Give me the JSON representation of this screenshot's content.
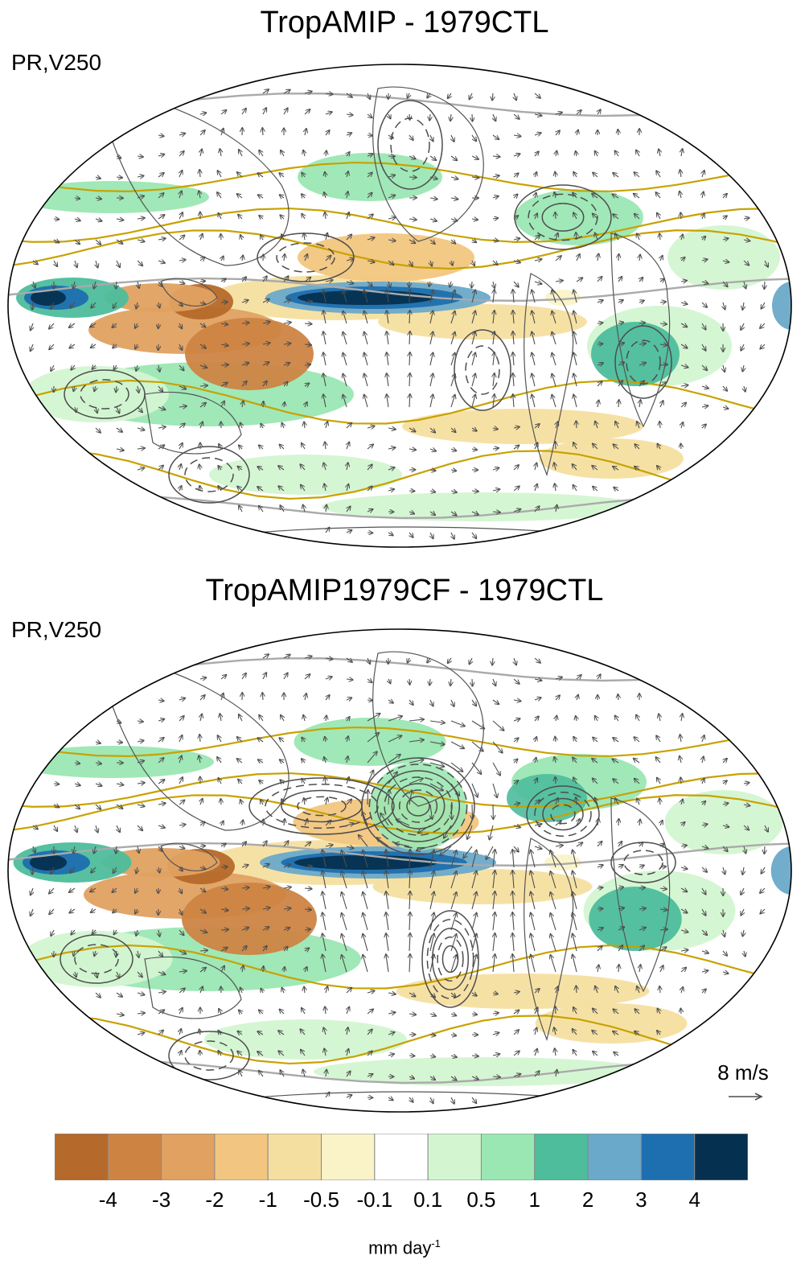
{
  "panels": [
    {
      "title": "TropAMIP - 1979CTL",
      "variable": "PR,V250"
    },
    {
      "title": "TropAMIP1979CF - 1979CTL",
      "variable": "PR,V250"
    }
  ],
  "reference_vector": {
    "label": "8 m/s",
    "value_m_s": 8
  },
  "colorbar": {
    "levels": [
      "-4",
      "-3",
      "-2",
      "-1",
      "-0.5",
      "-0.1",
      "0.1",
      "0.5",
      "1",
      "2",
      "3",
      "4"
    ],
    "colors": [
      "#b5692a",
      "#cd8443",
      "#e0a161",
      "#f2c680",
      "#f5dfa0",
      "#fbf3c8",
      "#ffffff",
      "#d3f6d1",
      "#9be7b3",
      "#4dbd9c",
      "#6aa9c9",
      "#1e6faf",
      "#06304f"
    ],
    "units": "mm day",
    "units_exp": "-1"
  },
  "map_colors": {
    "coast": "#555555",
    "contour": "#4d4d4d",
    "jet": "#c8a200",
    "grey_line": "#aaaaaa"
  }
}
